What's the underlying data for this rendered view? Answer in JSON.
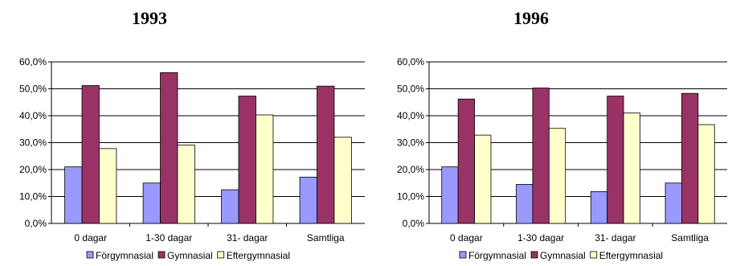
{
  "chart_data": [
    {
      "type": "bar",
      "title": "1993",
      "categories": [
        "0 dagar",
        "1-30 dagar",
        "31- dagar",
        "Samtliga"
      ],
      "series": [
        {
          "name": "Förgymnasial",
          "values": [
            21.0,
            15.0,
            12.5,
            17.2
          ],
          "color": "#9999ff"
        },
        {
          "name": "Gymnasial",
          "values": [
            51.2,
            56.0,
            47.3,
            51.0
          ],
          "color": "#993366"
        },
        {
          "name": "Eftergymnasial",
          "values": [
            27.8,
            29.1,
            40.3,
            32.0
          ],
          "color": "#ffffcc"
        }
      ],
      "ylim": [
        0,
        60
      ],
      "yticks": [
        "0,0%",
        "10,0%",
        "20,0%",
        "30,0%",
        "40,0%",
        "50,0%",
        "60,0%"
      ],
      "grid": true,
      "legend": "bottom"
    },
    {
      "type": "bar",
      "title": "1996",
      "categories": [
        "0 dagar",
        "1-30 dagar",
        "31- dagar",
        "Samtliga"
      ],
      "series": [
        {
          "name": "Förgymnasial",
          "values": [
            21.0,
            14.5,
            11.8,
            15.0
          ],
          "color": "#9999ff"
        },
        {
          "name": "Gymnasial",
          "values": [
            46.2,
            50.3,
            47.3,
            48.3
          ],
          "color": "#993366"
        },
        {
          "name": "Eftergymnasial",
          "values": [
            32.8,
            35.3,
            41.0,
            36.7
          ],
          "color": "#ffffcc"
        }
      ],
      "ylim": [
        0,
        60
      ],
      "yticks": [
        "0,0%",
        "10,0%",
        "20,0%",
        "30,0%",
        "40,0%",
        "50,0%",
        "60,0%"
      ],
      "grid": true,
      "legend": "bottom"
    }
  ]
}
